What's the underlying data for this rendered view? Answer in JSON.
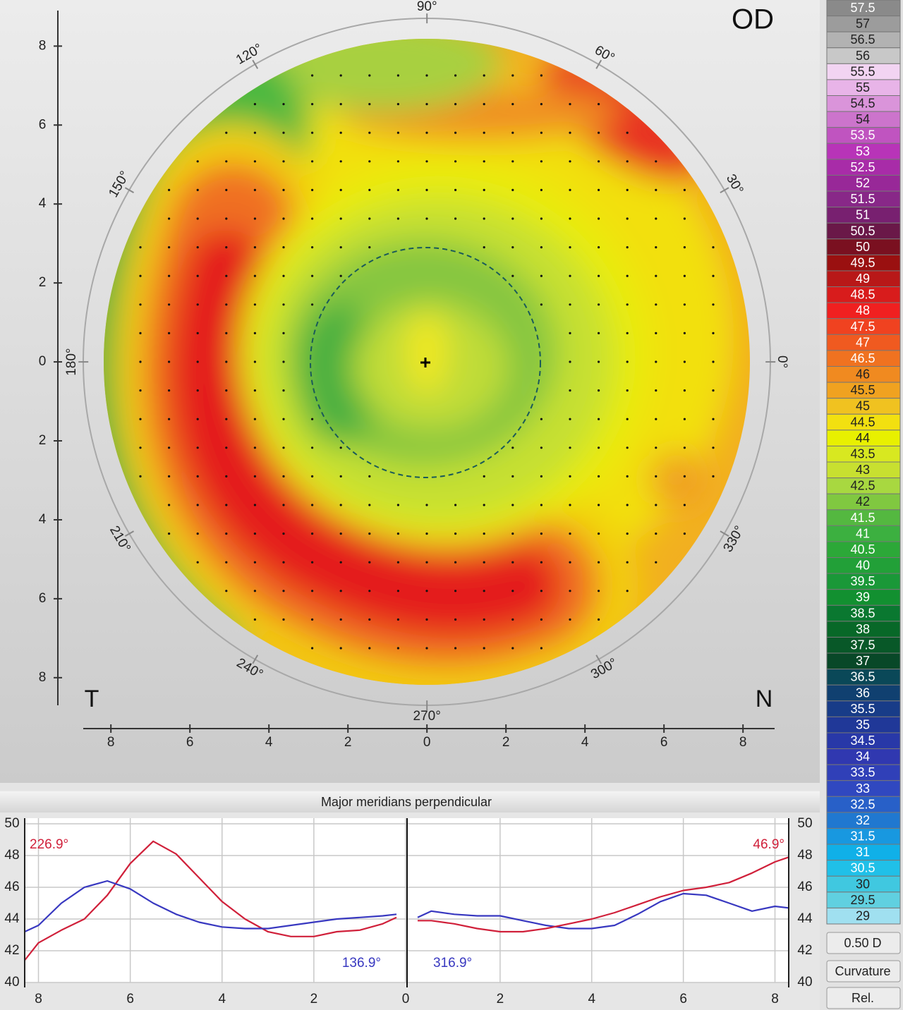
{
  "map": {
    "eye": "OD",
    "temporal": "T",
    "nasal": "N",
    "xlim": [
      -8.7,
      8.8
    ],
    "ylim": [
      -8.7,
      8.9
    ],
    "yticks": [
      8,
      6,
      4,
      2,
      0,
      {
        "value": -2,
        "label": "2"
      },
      {
        "value": -4,
        "label": "4"
      },
      {
        "value": -6,
        "label": "6"
      },
      {
        "value": -8,
        "label": "8"
      }
    ],
    "xticks": [
      {
        "value": -8,
        "label": "8"
      },
      {
        "value": -6,
        "label": "6"
      },
      {
        "value": -4,
        "label": "4"
      },
      {
        "value": -2,
        "label": "2"
      },
      0,
      2,
      4,
      6,
      8
    ],
    "angle_labels": [
      {
        "value": 0,
        "label": "0°"
      },
      {
        "value": 30,
        "label": "30°"
      },
      {
        "value": 60,
        "label": "60°"
      },
      {
        "value": 90,
        "label": "90°"
      },
      {
        "value": 120,
        "label": "120°"
      },
      {
        "value": 150,
        "label": "150°"
      },
      {
        "value": 180,
        "label": "180°"
      },
      {
        "value": 210,
        "label": "210°"
      },
      {
        "value": 240,
        "label": "240°"
      },
      {
        "value": 270,
        "label": "270°"
      },
      {
        "value": 300,
        "label": "300°"
      },
      {
        "value": 330,
        "label": "330°"
      }
    ]
  },
  "color_scale": {
    "values": [
      57.5,
      57,
      56.5,
      56,
      55.5,
      55,
      54.5,
      54,
      53.5,
      53,
      52.5,
      52,
      51.5,
      51,
      50.5,
      50,
      49.5,
      49,
      48.5,
      48,
      47.5,
      47,
      46.5,
      46,
      45.5,
      45,
      44.5,
      44,
      43.5,
      43,
      42.5,
      42,
      41.5,
      41,
      40.5,
      40,
      39.5,
      39,
      38.5,
      38,
      37.5,
      37,
      36.5,
      36,
      35.5,
      35,
      34.5,
      34,
      33.5,
      33,
      32.5,
      32,
      31.5,
      31,
      30.5,
      30,
      29.5,
      29
    ],
    "colors": [
      "#8a8a8a",
      "#9c9c9c",
      "#b2b2b2",
      "#c8c8c8",
      "#f2d4f2",
      "#e8b4e8",
      "#da94da",
      "#cc74cc",
      "#c054c0",
      "#b834b8",
      "#a82ca8",
      "#982898",
      "#882888",
      "#782070",
      "#6a1848",
      "#7a1020",
      "#9a1010",
      "#b81818",
      "#d81c1c",
      "#f02020",
      "#f04220",
      "#f05a20",
      "#f07220",
      "#f08a20",
      "#f0a220",
      "#f0c220",
      "#f2e010",
      "#e8f000",
      "#d8e820",
      "#c8e030",
      "#a8d840",
      "#80c840",
      "#54b840",
      "#3cb040",
      "#2ca838",
      "#22a038",
      "#1a9838",
      "#129030",
      "#0a7830",
      "#086828",
      "#085828",
      "#084828",
      "#0a4858",
      "#104070",
      "#183c88",
      "#203898",
      "#2838a8",
      "#3038b0",
      "#3040b8",
      "#3048c0",
      "#2860c8",
      "#2078d0",
      "#1898e0",
      "#10b0e8",
      "#20c0e8",
      "#40c8e0",
      "#60d0e0",
      "#a0e0f0"
    ]
  },
  "controls": [
    "0.50 D",
    "Curvature",
    "Rel."
  ],
  "chart_data": {
    "type": "line",
    "title": "Major meridians perpendicular",
    "ylim": [
      40,
      50
    ],
    "yticks": [
      40,
      42,
      44,
      46,
      48,
      50
    ],
    "panels": [
      {
        "xlim": [
          8.3,
          0
        ],
        "xticks": [
          8,
          6,
          4,
          2,
          0
        ],
        "x": [
          8.3,
          8,
          7.5,
          7,
          6.5,
          6,
          5.5,
          5,
          4.5,
          4,
          3.5,
          3,
          2.5,
          2,
          1.5,
          1,
          0.5,
          0.2
        ],
        "series": [
          {
            "name": "226.9°",
            "color": "#d0203a",
            "values": [
              41.4,
              42.5,
              43.3,
              44.0,
              45.5,
              47.5,
              48.9,
              48.1,
              46.6,
              45.1,
              44.0,
              43.2,
              42.9,
              42.9,
              43.2,
              43.3,
              43.7,
              44.1
            ]
          },
          {
            "name": "136.9°",
            "color": "#3838c0",
            "values": [
              43.2,
              43.6,
              45.0,
              46.0,
              46.4,
              45.9,
              45.0,
              44.3,
              43.8,
              43.5,
              43.4,
              43.4,
              43.6,
              43.8,
              44.0,
              44.1,
              44.2,
              44.3
            ]
          }
        ]
      },
      {
        "xlim": [
          0,
          8.3
        ],
        "xticks": [
          2,
          4,
          6,
          8
        ],
        "x": [
          0.2,
          0.5,
          1,
          1.5,
          2,
          2.5,
          3,
          3.5,
          4,
          4.5,
          5,
          5.5,
          6,
          6.5,
          7,
          7.5,
          8,
          8.3
        ],
        "series": [
          {
            "name": "316.9°",
            "color": "#3838c0",
            "values": [
              44.1,
              44.5,
              44.3,
              44.2,
              44.2,
              43.9,
              43.6,
              43.4,
              43.4,
              43.6,
              44.3,
              45.1,
              45.6,
              45.5,
              45.0,
              44.5,
              44.8,
              44.7
            ]
          },
          {
            "name": "46.9°",
            "color": "#d0203a",
            "values": [
              43.9,
              43.9,
              43.7,
              43.4,
              43.2,
              43.2,
              43.4,
              43.7,
              44.0,
              44.4,
              44.9,
              45.4,
              45.8,
              46.0,
              46.3,
              46.9,
              47.6,
              47.9
            ]
          }
        ]
      }
    ]
  }
}
